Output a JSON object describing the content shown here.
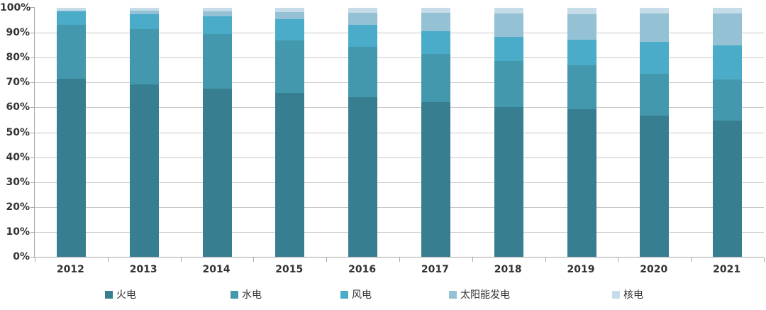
{
  "chart_data": {
    "type": "bar",
    "variant": "stacked-100-percent",
    "title": "",
    "xlabel": "",
    "ylabel": "",
    "categories": [
      "2012",
      "2013",
      "2014",
      "2015",
      "2016",
      "2017",
      "2018",
      "2019",
      "2020",
      "2021"
    ],
    "series": [
      {
        "key": "thermal",
        "name": "火电",
        "color": "#377e91",
        "values": [
          71.5,
          69.1,
          67.4,
          65.7,
          64.0,
          62.2,
          60.2,
          59.2,
          56.6,
          54.6
        ]
      },
      {
        "key": "hydro",
        "name": "水电",
        "color": "#4498ad",
        "values": [
          21.7,
          22.4,
          22.2,
          21.2,
          20.2,
          19.2,
          18.5,
          17.7,
          16.8,
          16.5
        ]
      },
      {
        "key": "wind",
        "name": "风电",
        "color": "#4aacc9",
        "values": [
          5.3,
          6.0,
          7.1,
          8.6,
          9.0,
          9.2,
          9.7,
          10.4,
          12.8,
          13.8
        ]
      },
      {
        "key": "solar",
        "name": "太阳能发电",
        "color": "#94c1d4",
        "values": [
          0.3,
          1.3,
          1.8,
          2.9,
          4.7,
          7.3,
          9.2,
          10.2,
          11.5,
          12.9
        ]
      },
      {
        "key": "nuclear",
        "name": "核电",
        "color": "#c6dce8",
        "values": [
          1.2,
          1.2,
          1.5,
          1.6,
          2.1,
          2.1,
          2.4,
          2.5,
          2.3,
          2.2
        ]
      }
    ],
    "y_ticks": [
      "0%",
      "10%",
      "20%",
      "30%",
      "40%",
      "50%",
      "60%",
      "70%",
      "80%",
      "90%",
      "100%"
    ],
    "ylim": [
      0,
      100
    ],
    "grid": true,
    "legend_position": "bottom"
  },
  "colors": {
    "grid": "#c9c9c9",
    "axis": "#a6a6a6",
    "text": "#333333",
    "background": "#ffffff"
  }
}
